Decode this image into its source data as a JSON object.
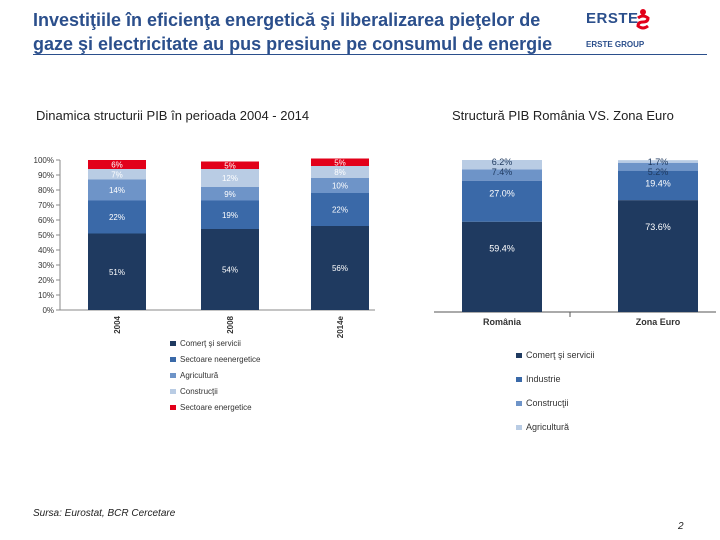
{
  "header": {
    "title_line1": "Investiţiile în eficienţa energetică şi liberalizarea pieţelor de",
    "title_line2": "gaze şi electricitate au pus presiune pe consumul de energie",
    "logo_text": "ERSTE",
    "logo_sub": "ERSTE GROUP",
    "colors": {
      "title": "#2b4f8c",
      "logo_red": "#e2001a"
    }
  },
  "chart_data": [
    {
      "type": "bar",
      "stacked": true,
      "title": "Dinamica structurii PIB în perioada 2004 - 2014",
      "categories": [
        "2004",
        "2008",
        "2014e"
      ],
      "yticks": [
        "0%",
        "10%",
        "20%",
        "30%",
        "40%",
        "50%",
        "60%",
        "70%",
        "80%",
        "90%",
        "100%"
      ],
      "ylim": [
        0,
        100
      ],
      "series": [
        {
          "name": "Comerţ şi servicii",
          "color": "#1f3a60",
          "values": [
            51,
            54,
            56
          ],
          "labels": [
            "51%",
            "54%",
            "56%"
          ]
        },
        {
          "name": "Sectoare neenergetice",
          "color": "#3a69a8",
          "values": [
            22,
            19,
            22
          ],
          "labels": [
            "22%",
            "19%",
            "22%"
          ]
        },
        {
          "name": "Agricultură",
          "color": "#6e94c8",
          "values": [
            14,
            9,
            10
          ],
          "labels": [
            "14%",
            "9%",
            "10%"
          ]
        },
        {
          "name": "Construcţii",
          "color": "#b9cce4",
          "values": [
            7,
            12,
            8
          ],
          "labels": [
            "7%",
            "12%",
            "8%"
          ]
        },
        {
          "name": "Sectoare energetice",
          "color": "#e2001a",
          "values": [
            6,
            5,
            5
          ],
          "labels": [
            "6%",
            "5%",
            "5%"
          ]
        }
      ],
      "legend_position": "bottom"
    },
    {
      "type": "bar",
      "stacked": true,
      "title": "Structură PIB România VS. Zona Euro",
      "categories": [
        "România",
        "Zona Euro"
      ],
      "ylim": [
        0,
        100
      ],
      "series": [
        {
          "name": "Comerţ şi servicii",
          "color": "#1f3a60",
          "values": [
            59.4,
            73.6
          ],
          "labels": [
            "59.4%",
            "73.6%"
          ]
        },
        {
          "name": "Industrie",
          "color": "#3a69a8",
          "values": [
            27.0,
            19.4
          ],
          "labels": [
            "27.0%",
            "19.4%"
          ]
        },
        {
          "name": "Construcţii",
          "color": "#6e94c8",
          "values": [
            7.4,
            5.2
          ],
          "labels": [
            "7.4%",
            "5.2%"
          ]
        },
        {
          "name": "Agricultură",
          "color": "#b9cce4",
          "values": [
            6.2,
            1.7
          ],
          "labels": [
            "6.2%",
            "1.7%"
          ]
        }
      ],
      "legend_position": "bottom"
    }
  ],
  "footer": {
    "source": "Sursa: Eurostat, BCR Cercetare",
    "page_number": "2"
  }
}
